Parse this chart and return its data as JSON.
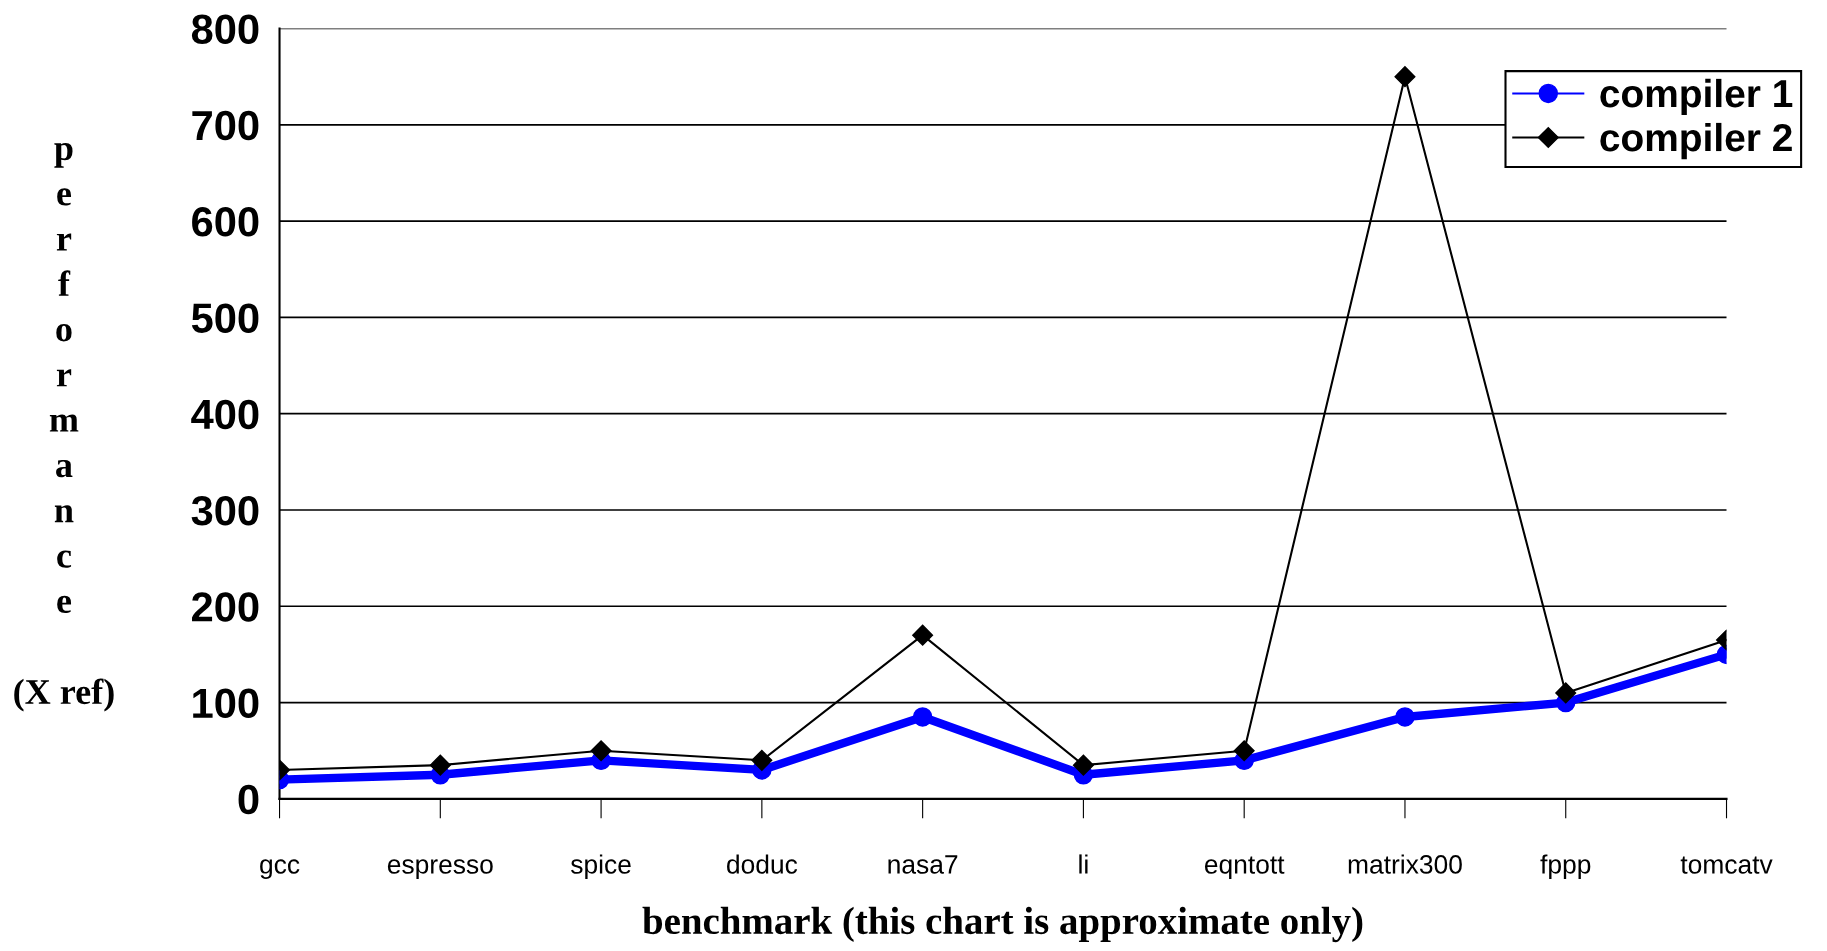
{
  "chart_data": {
    "type": "line",
    "xlabel": "benchmark (this chart is approximate only)",
    "ylabel": "performance (X ref)",
    "categories": [
      "gcc",
      "espresso",
      "spice",
      "doduc",
      "nasa7",
      "li",
      "eqntott",
      "matrix300",
      "fppp",
      "tomcatv"
    ],
    "series": [
      {
        "name": "compiler 1",
        "color": "#0000ff",
        "marker": "circle",
        "values": [
          20,
          25,
          40,
          30,
          85,
          25,
          40,
          85,
          100,
          150
        ]
      },
      {
        "name": "compiler 2",
        "color": "#000000",
        "marker": "diamond",
        "values": [
          30,
          35,
          50,
          40,
          170,
          35,
          50,
          750,
          110,
          165
        ]
      }
    ],
    "ylim": [
      0,
      800
    ],
    "yticks": [
      0,
      100,
      200,
      300,
      400,
      500,
      600,
      700,
      800
    ],
    "grid": "y",
    "legend": "top right",
    "line_style": "solid"
  }
}
